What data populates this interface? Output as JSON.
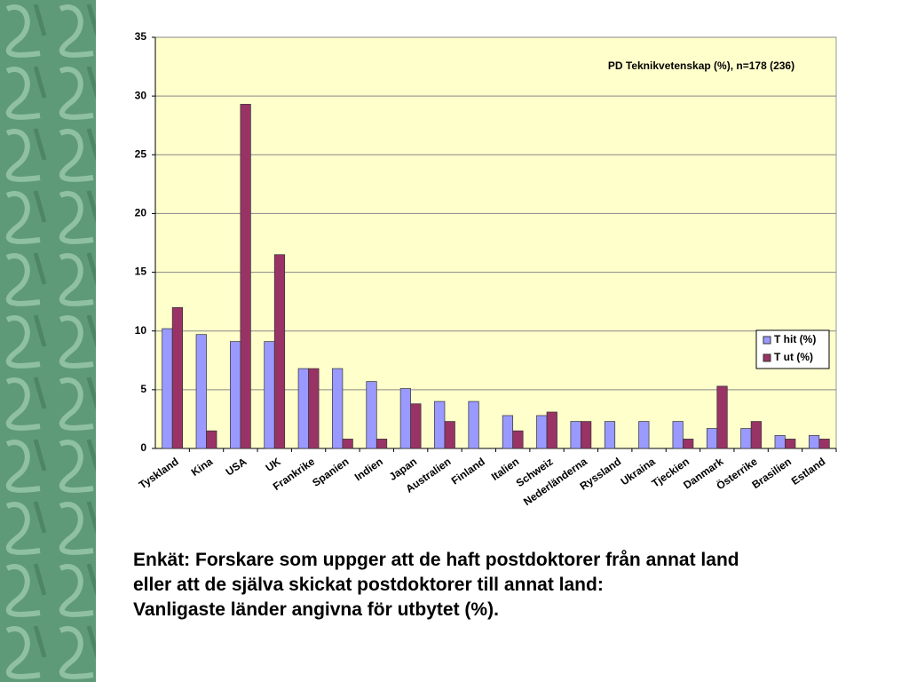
{
  "chart_data": {
    "type": "bar",
    "title": "PD Teknikvetenskap (%), n=178 (236)",
    "categories": [
      "Tyskland",
      "Kina",
      "USA",
      "UK",
      "Frankrike",
      "Spanien",
      "Indien",
      "Japan",
      "Australien",
      "Finland",
      "Italien",
      "Schweiz",
      "Nederländerna",
      "Ryssland",
      "Ukraina",
      "Tjeckien",
      "Danmark",
      "Österrike",
      "Brasilien",
      "Estland"
    ],
    "series": [
      {
        "name": "T hit (%)",
        "color": "#9999ff",
        "values": [
          10.2,
          9.7,
          9.1,
          9.1,
          6.8,
          6.8,
          5.7,
          5.1,
          4.0,
          4.0,
          2.8,
          2.8,
          2.3,
          2.3,
          2.3,
          2.3,
          1.7,
          1.7,
          1.1,
          1.1
        ]
      },
      {
        "name": "T ut (%)",
        "color": "#993366",
        "values": [
          12.0,
          1.5,
          29.3,
          16.5,
          6.8,
          0.8,
          0.8,
          3.8,
          2.3,
          0,
          1.5,
          3.1,
          2.3,
          0,
          0,
          0.8,
          5.3,
          2.3,
          0.8,
          0.8
        ]
      }
    ],
    "ylim": [
      0,
      35
    ],
    "yticks": [
      0,
      5,
      10,
      15,
      20,
      25,
      30,
      35
    ],
    "grid": true,
    "legend": "right"
  },
  "caption": [
    "Enkät: Forskare som uppger att de haft postdoktorer från annat land",
    "eller att de själva skickat postdoktorer till annat land:",
    "Vanligaste länder angivna för utbytet (%)."
  ]
}
